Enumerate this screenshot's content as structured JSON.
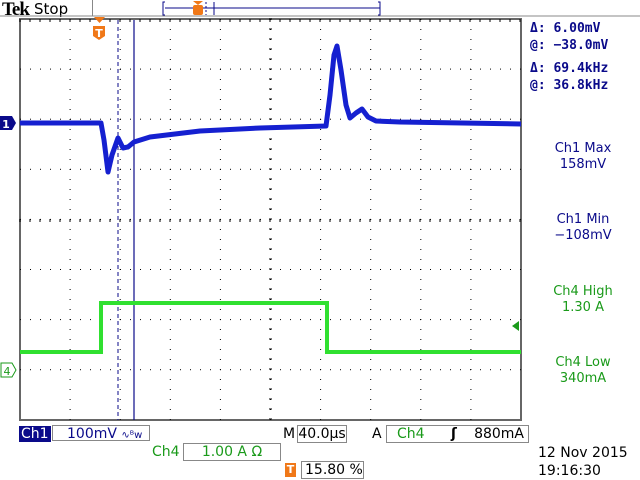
{
  "header": {
    "brand": "Tek",
    "status": "Stop"
  },
  "cursor_readout": {
    "amp_delta": "Δ:  6.00mV",
    "amp_at": "@: −38.0mV",
    "freq_delta": "Δ:  69.4kHz",
    "freq_at": "@:  36.8kHz"
  },
  "measurements": [
    {
      "label": "Ch1 Max",
      "value": "158mV",
      "color": "#0a0a8a"
    },
    {
      "label": "Ch1 Min",
      "value": "−108mV",
      "color": "#0a0a8a"
    },
    {
      "label": "Ch4 High",
      "value": "1.30 A",
      "color": "#1a9a1a"
    },
    {
      "label": "Ch4 Low",
      "value": "340mA",
      "color": "#1a9a1a"
    }
  ],
  "channels": {
    "ch1": {
      "marker": "1",
      "label": "Ch1",
      "scale": "100mV",
      "bw_icon": "∿ᴮw",
      "color": "#0a14c8"
    },
    "ch4": {
      "marker": "4",
      "label": "Ch4",
      "scale": "1.00 A Ω",
      "color": "#22dd22"
    }
  },
  "timebase": {
    "prefix": "M",
    "value": "40.0µs"
  },
  "trigger": {
    "prefix": "A",
    "source": "Ch4",
    "slope_icon": "rising-edge",
    "slope": "ʃ",
    "level": "880mA",
    "marker": "T",
    "position": "15.80 %",
    "color": "#f07818"
  },
  "datetime": {
    "date": "12 Nov 2015",
    "time": "19:16:30"
  }
}
